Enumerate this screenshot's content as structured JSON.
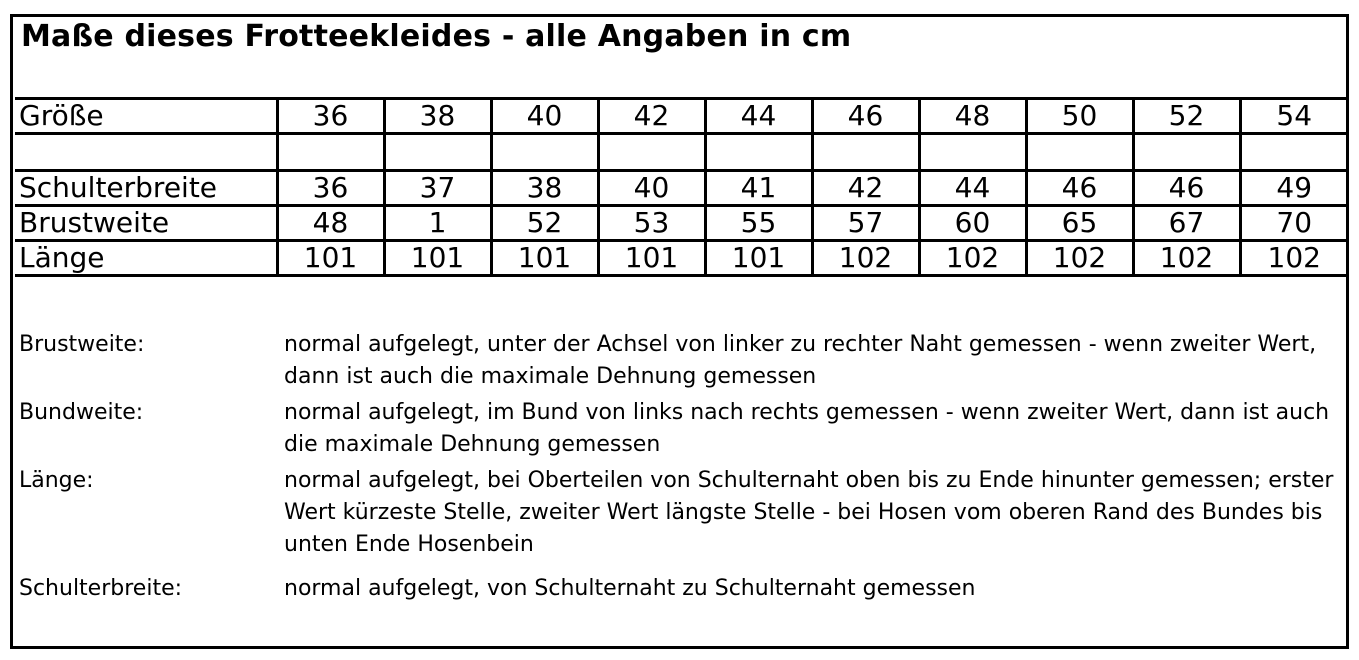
{
  "title": "Maße dieses Frotteekleides  - alle Angaben in cm",
  "size_table": {
    "header_label": "Größe",
    "sizes": [
      "36",
      "38",
      "40",
      "42",
      "44",
      "46",
      "48",
      "50",
      "52",
      "54"
    ],
    "rows": [
      {
        "label": "Schulterbreite",
        "values": [
          "36",
          "37",
          "38",
          "40",
          "41",
          "42",
          "44",
          "46",
          "46",
          "49"
        ]
      },
      {
        "label": "Brustweite",
        "values": [
          "48",
          "1",
          "52",
          "53",
          "55",
          "57",
          "60",
          "65",
          "67",
          "70"
        ]
      },
      {
        "label": "Länge",
        "values": [
          "101",
          "101",
          "101",
          "101",
          "101",
          "102",
          "102",
          "102",
          "102",
          "102"
        ]
      }
    ]
  },
  "notes": [
    {
      "term": "Brustweite:",
      "text": "normal aufgelegt, unter der Achsel von linker zu rechter Naht gemessen - wenn zweiter Wert, dann ist auch die maximale Dehnung gemessen"
    },
    {
      "term": "Bundweite:",
      "text": "normal aufgelegt, im Bund von links nach rechts gemessen - wenn zweiter Wert, dann ist auch die maximale Dehnung gemessen"
    },
    {
      "term": "Länge:",
      "text": "normal aufgelegt, bei Oberteilen von Schulternaht oben bis zu Ende hinunter gemessen; erster Wert kürzeste Stelle, zweiter Wert längste Stelle - bei Hosen vom oberen Rand des Bundes bis unten Ende Hosenbein"
    },
    {
      "term": "Schulterbreite:",
      "text": "normal aufgelegt, von Schulternaht zu Schulternaht gemessen"
    }
  ]
}
